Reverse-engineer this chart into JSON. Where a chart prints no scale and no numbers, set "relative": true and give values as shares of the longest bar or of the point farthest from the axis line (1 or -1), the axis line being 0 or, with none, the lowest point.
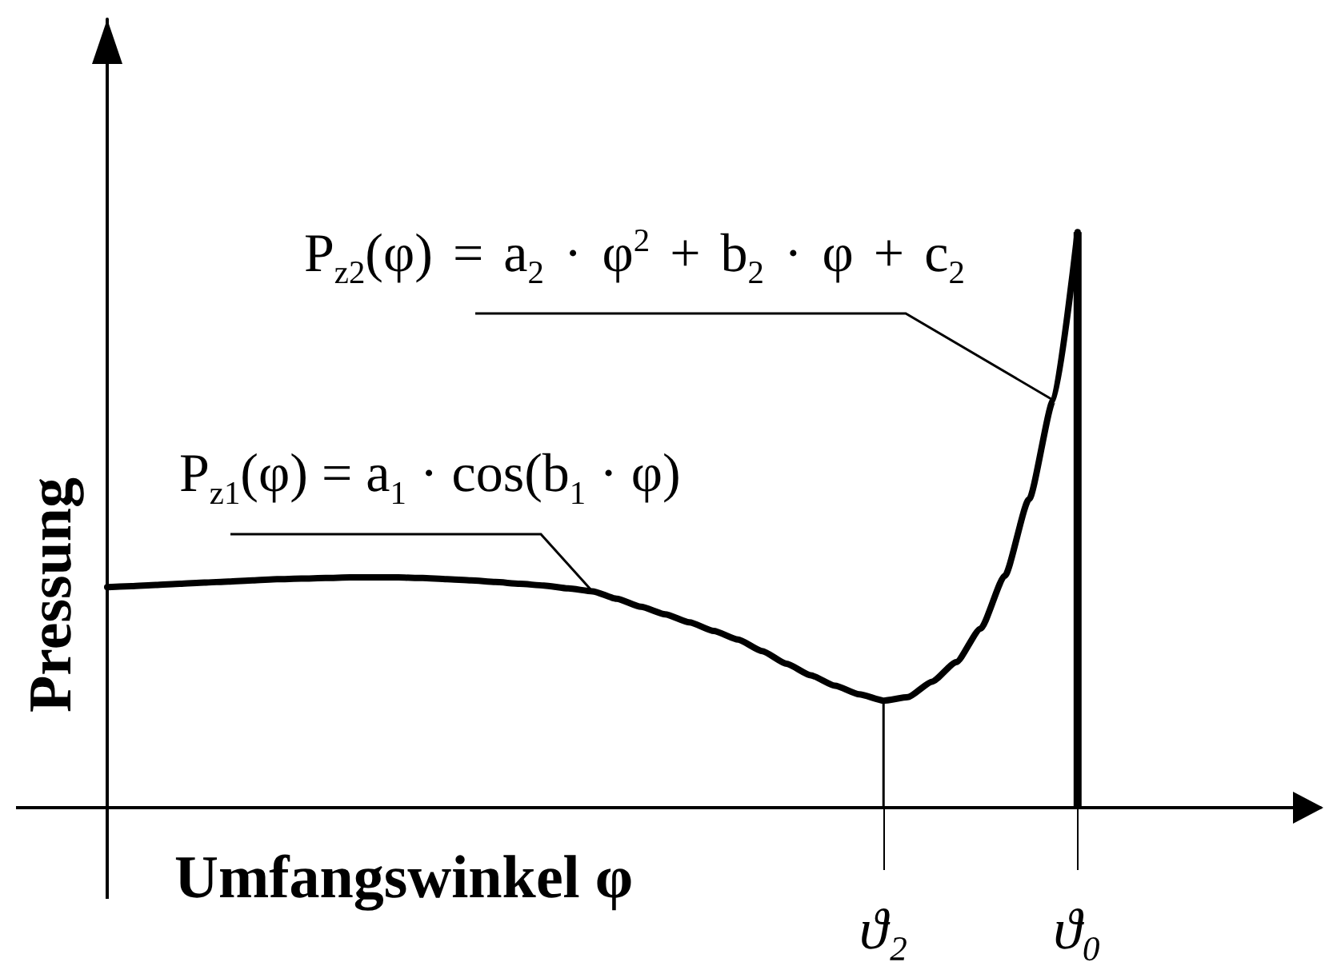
{
  "chart_data": {
    "type": "line",
    "relative": true,
    "xlabel": "Umfangswinkel φ",
    "ylabel": "Pressung",
    "categories": [
      null,
      null,
      null,
      null,
      null,
      null,
      null,
      null,
      null,
      null,
      null,
      null,
      null,
      null,
      null,
      null,
      null,
      null,
      null,
      null,
      null,
      null,
      null,
      null,
      null,
      null,
      null,
      null,
      null,
      null,
      null,
      null,
      "ϑ₂",
      null,
      null,
      null,
      null,
      null,
      null,
      null,
      "ϑ₀",
      null,
      null,
      null,
      null,
      null,
      null,
      null,
      null,
      null,
      null
    ],
    "series": [
      {
        "color": "#000000",
        "values": [
          0.383,
          0.385,
          0.387,
          0.389,
          0.391,
          0.393,
          0.395,
          0.397,
          0.398,
          0.399,
          0.4,
          0.4,
          0.4,
          0.399,
          0.397,
          0.395,
          0.392,
          0.389,
          0.386,
          0.381,
          0.376,
          0.363,
          0.349,
          0.336,
          0.322,
          0.307,
          0.292,
          0.272,
          0.25,
          0.23,
          0.212,
          0.197,
          0.186,
          0.192,
          0.219,
          0.253,
          0.311,
          0.403,
          0.536,
          0.708,
          1,
          null,
          null,
          null,
          null,
          null,
          null,
          null,
          null,
          null,
          null
        ]
      },
      {
        "type": "bar",
        "color": "#000000",
        "values": [
          null,
          null,
          null,
          null,
          null,
          null,
          null,
          null,
          null,
          null,
          null,
          null,
          null,
          null,
          null,
          null,
          null,
          null,
          null,
          null,
          null,
          null,
          null,
          null,
          null,
          null,
          null,
          null,
          null,
          null,
          null,
          null,
          null,
          null,
          null,
          null,
          null,
          null,
          null,
          null,
          1,
          null,
          null,
          null,
          null,
          null,
          null,
          null,
          null,
          null,
          null
        ]
      },
      {
        "type": "bar",
        "color": "#000000",
        "values": [
          null,
          null,
          null,
          null,
          null,
          null,
          null,
          null,
          null,
          null,
          null,
          null,
          null,
          null,
          null,
          null,
          null,
          null,
          null,
          null,
          null,
          null,
          null,
          null,
          null,
          null,
          null,
          null,
          null,
          null,
          null,
          null,
          0.186,
          null,
          null,
          null,
          null,
          null,
          null,
          null,
          null,
          null,
          null,
          null,
          null,
          null,
          null,
          null,
          null,
          null,
          null
        ]
      }
    ],
    "annotations": [
      "P$_{z2}$(φ) = a$_{2}$ · φ$^{2}$ + b$_{2}$ · φ + c$_{2}$",
      "P$_{z1}$(φ) = a$_{1}$ · cos(b$_{1}$ · φ)"
    ]
  }
}
